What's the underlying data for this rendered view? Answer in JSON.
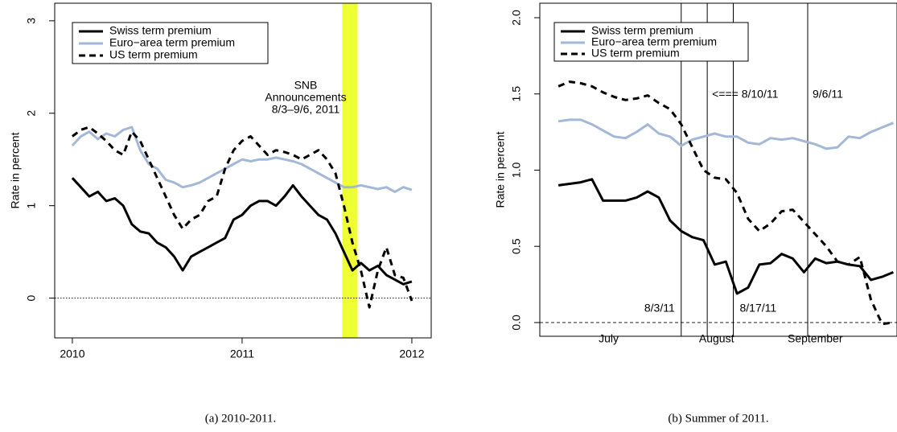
{
  "chart_data": [
    {
      "type": "line",
      "caption": "(a) 2010-2011.",
      "ylabel": "Rate in percent",
      "x": [
        2010.0,
        2010.05,
        2010.1,
        2010.15,
        2010.2,
        2010.25,
        2010.3,
        2010.35,
        2010.4,
        2010.45,
        2010.5,
        2010.55,
        2010.6,
        2010.65,
        2010.7,
        2010.75,
        2010.8,
        2010.85,
        2010.9,
        2010.95,
        2011.0,
        2011.05,
        2011.1,
        2011.15,
        2011.2,
        2011.25,
        2011.3,
        2011.35,
        2011.4,
        2011.45,
        2011.5,
        2011.55,
        2011.6,
        2011.65,
        2011.7,
        2011.75,
        2011.8,
        2011.85,
        2011.9,
        2011.95,
        2012.0
      ],
      "series": [
        {
          "name": "Swiss term premium",
          "color": "#000000",
          "linestyle": "solid",
          "values": [
            1.3,
            1.2,
            1.1,
            1.15,
            1.05,
            1.08,
            1.0,
            0.8,
            0.72,
            0.7,
            0.6,
            0.55,
            0.45,
            0.3,
            0.45,
            0.5,
            0.55,
            0.6,
            0.65,
            0.85,
            0.9,
            1.0,
            1.05,
            1.05,
            1.0,
            1.1,
            1.22,
            1.1,
            1.0,
            0.9,
            0.85,
            0.7,
            0.5,
            0.3,
            0.38,
            0.3,
            0.35,
            0.25,
            0.2,
            0.15,
            0.18
          ]
        },
        {
          "name": "Euro−area term premium",
          "color": "#a3b8d6",
          "linestyle": "solid",
          "values": [
            1.65,
            1.75,
            1.8,
            1.72,
            1.78,
            1.75,
            1.82,
            1.85,
            1.6,
            1.45,
            1.4,
            1.28,
            1.25,
            1.2,
            1.22,
            1.25,
            1.3,
            1.35,
            1.4,
            1.45,
            1.5,
            1.48,
            1.5,
            1.5,
            1.52,
            1.5,
            1.48,
            1.45,
            1.4,
            1.35,
            1.3,
            1.25,
            1.2,
            1.2,
            1.22,
            1.2,
            1.18,
            1.2,
            1.15,
            1.2,
            1.17
          ]
        },
        {
          "name": "US term premium",
          "color": "#000000",
          "linestyle": "dashed",
          "values": [
            1.75,
            1.82,
            1.85,
            1.78,
            1.7,
            1.6,
            1.55,
            1.8,
            1.7,
            1.5,
            1.3,
            1.1,
            0.9,
            0.75,
            0.85,
            0.9,
            1.05,
            1.1,
            1.4,
            1.6,
            1.7,
            1.75,
            1.65,
            1.55,
            1.6,
            1.58,
            1.55,
            1.5,
            1.55,
            1.6,
            1.5,
            1.35,
            1.0,
            0.6,
            0.3,
            -0.1,
            0.3,
            0.55,
            0.25,
            0.22,
            -0.03
          ]
        }
      ],
      "xlim": [
        2009.896,
        2012.114
      ],
      "xticks": [
        2010,
        2011,
        2012
      ],
      "ylim": [
        -0.43,
        3.19
      ],
      "yticks": [
        0,
        1,
        2,
        3
      ],
      "zero_line": "dotted",
      "band": [
        2011.59,
        2011.68
      ],
      "band_color": "#eeff33",
      "annotation": [
        "SNB",
        "Announcements",
        "8/3–9/6, 2011"
      ],
      "legend": "top-left"
    },
    {
      "type": "line",
      "caption": "(b) Summer of 2011.",
      "ylabel": "Rate in percent",
      "x": [
        0,
        3,
        6,
        9,
        12,
        15,
        18,
        21,
        24,
        27,
        30,
        33,
        36,
        39,
        42,
        45,
        48,
        51,
        54,
        57,
        60,
        63,
        66,
        69,
        72,
        75,
        78,
        81,
        84,
        87,
        90
      ],
      "series": [
        {
          "name": "Swiss term premium",
          "color": "#000000",
          "linestyle": "solid",
          "values": [
            0.9,
            0.91,
            0.92,
            0.94,
            0.8,
            0.8,
            0.8,
            0.82,
            0.86,
            0.82,
            0.67,
            0.6,
            0.56,
            0.54,
            0.38,
            0.4,
            0.19,
            0.23,
            0.38,
            0.39,
            0.45,
            0.42,
            0.33,
            0.42,
            0.39,
            0.4,
            0.38,
            0.37,
            0.28,
            0.3,
            0.33
          ]
        },
        {
          "name": "Euro−area term premium",
          "color": "#a3b8d6",
          "linestyle": "solid",
          "values": [
            1.32,
            1.33,
            1.33,
            1.3,
            1.26,
            1.22,
            1.21,
            1.25,
            1.3,
            1.24,
            1.22,
            1.16,
            1.2,
            1.22,
            1.24,
            1.22,
            1.22,
            1.18,
            1.17,
            1.21,
            1.2,
            1.21,
            1.19,
            1.17,
            1.14,
            1.15,
            1.22,
            1.21,
            1.25,
            1.28,
            1.31
          ]
        },
        {
          "name": "US term premium",
          "color": "#000000",
          "linestyle": "dashed",
          "values": [
            1.55,
            1.58,
            1.57,
            1.55,
            1.51,
            1.48,
            1.46,
            1.47,
            1.49,
            1.44,
            1.4,
            1.3,
            1.15,
            1.0,
            0.95,
            0.94,
            0.85,
            0.68,
            0.6,
            0.65,
            0.73,
            0.74,
            0.66,
            0.58,
            0.5,
            0.4,
            0.38,
            0.43,
            0.15,
            -0.01,
            0.0
          ]
        }
      ],
      "xlim": [
        -5,
        91
      ],
      "xticks": [
        {
          "value": 13.5,
          "label": "July"
        },
        {
          "value": 42.5,
          "label": "August"
        },
        {
          "value": 69,
          "label": "September"
        }
      ],
      "ylim": [
        -0.09,
        2.095
      ],
      "yticks": [
        {
          "value": 0,
          "label": "0.0"
        },
        {
          "value": 0.5,
          "label": "0.5"
        },
        {
          "value": 1,
          "label": "1.0"
        },
        {
          "value": 1.5,
          "label": "1.5"
        },
        {
          "value": 2,
          "label": "2.0"
        }
      ],
      "zero_line": "dashed",
      "vlines": [
        {
          "x": 33,
          "label": "8/3/11"
        },
        {
          "x": 40,
          "label": "<=== 8/10/11"
        },
        {
          "x": 47,
          "label": "8/17/11"
        },
        {
          "x": 67,
          "label": "9/6/11"
        }
      ],
      "legend": "top-left"
    }
  ]
}
